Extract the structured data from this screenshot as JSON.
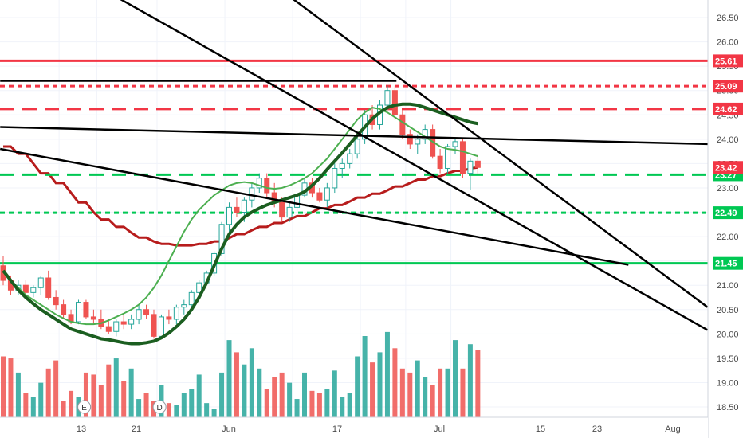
{
  "chart_data": {
    "type": "candlestick",
    "price_axis": {
      "range": [
        18.3,
        26.85
      ],
      "ticks": [
        "26.50",
        "26.00",
        "25.50",
        "25.00",
        "24.50",
        "24.00",
        "23.50",
        "23.00",
        "22.50",
        "22.00",
        "21.50",
        "21.00",
        "20.50",
        "20.00",
        "19.50",
        "19.00",
        "18.50"
      ]
    },
    "time_axis": {
      "ticks": [
        {
          "label": "13",
          "bar": 7
        },
        {
          "label": "Jun",
          "bar": 20
        },
        {
          "label": "21",
          "bar": 12
        },
        {
          "label": "17",
          "bar": 29
        },
        {
          "label": "Jul",
          "bar": 38
        },
        {
          "label": "15",
          "bar": 47
        },
        {
          "label": "23",
          "bar": 53
        },
        {
          "label": "Aug",
          "bar": 59
        }
      ]
    },
    "candles": [
      [
        21.4,
        21.6,
        21.0,
        21.1
      ],
      [
        21.1,
        21.2,
        20.8,
        20.9
      ],
      [
        20.9,
        21.1,
        20.8,
        21.0
      ],
      [
        21.0,
        21.1,
        20.8,
        20.85
      ],
      [
        20.85,
        21.0,
        20.75,
        20.95
      ],
      [
        20.95,
        21.2,
        20.8,
        21.15
      ],
      [
        21.15,
        21.3,
        20.7,
        20.75
      ],
      [
        20.75,
        20.9,
        20.5,
        20.6
      ],
      [
        20.6,
        20.7,
        20.3,
        20.4
      ],
      [
        20.4,
        20.5,
        20.2,
        20.25
      ],
      [
        20.25,
        20.7,
        20.2,
        20.65
      ],
      [
        20.65,
        20.7,
        20.3,
        20.35
      ],
      [
        20.35,
        20.5,
        20.2,
        20.3
      ],
      [
        20.3,
        20.5,
        20.1,
        20.15
      ],
      [
        20.15,
        20.3,
        20.0,
        20.05
      ],
      [
        20.05,
        20.3,
        19.95,
        20.25
      ],
      [
        20.25,
        20.4,
        20.1,
        20.2
      ],
      [
        20.2,
        20.4,
        20.1,
        20.3
      ],
      [
        20.3,
        20.6,
        20.2,
        20.5
      ],
      [
        20.5,
        20.6,
        20.3,
        20.4
      ],
      [
        20.4,
        20.5,
        19.9,
        19.95
      ],
      [
        19.95,
        20.4,
        19.9,
        20.35
      ],
      [
        20.35,
        20.5,
        20.2,
        20.3
      ],
      [
        20.3,
        20.6,
        20.2,
        20.55
      ],
      [
        20.55,
        20.7,
        20.4,
        20.6
      ],
      [
        20.6,
        20.9,
        20.5,
        20.85
      ],
      [
        20.85,
        21.1,
        20.8,
        21.05
      ],
      [
        21.05,
        21.3,
        21.0,
        21.25
      ],
      [
        21.25,
        21.7,
        21.2,
        21.65
      ],
      [
        21.65,
        22.3,
        21.6,
        22.25
      ],
      [
        22.25,
        22.7,
        22.1,
        22.6
      ],
      [
        22.6,
        22.8,
        22.4,
        22.5
      ],
      [
        22.5,
        22.8,
        22.3,
        22.75
      ],
      [
        22.75,
        23.1,
        22.6,
        23.0
      ],
      [
        23.0,
        23.3,
        22.9,
        23.2
      ],
      [
        23.2,
        23.3,
        22.8,
        22.9
      ],
      [
        22.9,
        23.1,
        22.6,
        22.7
      ],
      [
        22.7,
        22.8,
        22.3,
        22.4
      ],
      [
        22.4,
        22.7,
        22.3,
        22.6
      ],
      [
        22.6,
        22.9,
        22.5,
        22.85
      ],
      [
        22.85,
        23.2,
        22.8,
        23.1
      ],
      [
        23.1,
        23.2,
        22.8,
        22.9
      ],
      [
        22.9,
        23.0,
        22.7,
        22.75
      ],
      [
        22.75,
        23.1,
        22.6,
        23.0
      ],
      [
        23.0,
        23.5,
        22.9,
        23.4
      ],
      [
        23.4,
        23.6,
        23.2,
        23.5
      ],
      [
        23.5,
        23.8,
        23.4,
        23.7
      ],
      [
        23.7,
        24.1,
        23.6,
        24.0
      ],
      [
        24.0,
        24.6,
        23.9,
        24.5
      ],
      [
        24.5,
        24.7,
        24.2,
        24.3
      ],
      [
        24.3,
        24.8,
        24.2,
        24.7
      ],
      [
        24.7,
        25.1,
        24.6,
        25.0
      ],
      [
        25.0,
        25.1,
        24.4,
        24.5
      ],
      [
        24.5,
        24.6,
        24.0,
        24.1
      ],
      [
        24.1,
        24.2,
        23.8,
        23.9
      ],
      [
        23.9,
        24.1,
        23.7,
        24.0
      ],
      [
        24.0,
        24.3,
        23.9,
        24.2
      ],
      [
        24.2,
        24.3,
        23.6,
        23.65
      ],
      [
        23.65,
        23.8,
        23.3,
        23.4
      ],
      [
        23.4,
        23.9,
        23.3,
        23.85
      ],
      [
        23.85,
        24.0,
        23.7,
        23.95
      ],
      [
        23.95,
        24.0,
        23.2,
        23.3
      ],
      [
        23.3,
        23.6,
        22.95,
        23.55
      ],
      [
        23.55,
        23.7,
        23.3,
        23.42
      ]
    ],
    "volume": [
      30,
      29,
      22,
      12,
      10,
      17,
      24,
      28,
      8,
      13,
      10,
      22,
      21,
      16,
      26,
      29,
      18,
      24,
      9,
      12,
      8,
      16,
      7,
      6,
      12,
      14,
      21,
      7,
      4,
      22,
      38,
      32,
      26,
      34,
      24,
      14,
      20,
      22,
      17,
      9,
      22,
      13,
      12,
      14,
      23,
      10,
      12,
      30,
      40,
      27,
      32,
      42,
      34,
      24,
      22,
      28,
      20,
      16,
      24,
      24,
      38,
      24,
      36,
      33
    ],
    "sma_slow": [
      21.3,
      21.1,
      20.9,
      20.75,
      20.62,
      20.5,
      20.4,
      20.3,
      20.2,
      20.1,
      20.05,
      20.0,
      19.95,
      19.9,
      19.88,
      19.85,
      19.82,
      19.8,
      19.8,
      19.82,
      19.85,
      19.92,
      20.02,
      20.15,
      20.3,
      20.5,
      20.75,
      21.05,
      21.4,
      21.75,
      22.05,
      22.25,
      22.4,
      22.5,
      22.58,
      22.65,
      22.7,
      22.75,
      22.8,
      22.85,
      22.92,
      23.05,
      23.2,
      23.38,
      23.55,
      23.72,
      23.9,
      24.08,
      24.25,
      24.42,
      24.55,
      24.65,
      24.7,
      24.72,
      24.72,
      24.7,
      24.65,
      24.6,
      24.55,
      24.5,
      24.45,
      24.4,
      24.35,
      24.32
    ],
    "sma_fast": [
      21.3,
      21.1,
      20.95,
      20.8,
      20.7,
      20.6,
      20.5,
      20.4,
      20.32,
      20.25,
      20.22,
      20.2,
      20.2,
      20.22,
      20.28,
      20.35,
      20.42,
      20.5,
      20.6,
      20.75,
      20.95,
      21.2,
      21.5,
      21.8,
      22.1,
      22.35,
      22.55,
      22.7,
      22.85,
      22.95,
      23.05,
      23.1,
      23.12,
      23.1,
      23.05,
      23.0,
      22.98,
      23.0,
      23.05,
      23.12,
      23.2,
      23.3,
      23.45,
      23.6,
      23.8,
      24.0,
      24.2,
      24.4,
      24.55,
      24.65,
      24.62,
      24.55,
      24.45,
      24.35,
      24.25,
      24.15,
      24.05,
      23.95,
      23.85,
      23.8,
      23.78,
      23.75,
      23.7,
      23.65
    ],
    "ema_long": [
      23.85,
      23.7,
      23.5,
      23.3,
      23.1,
      22.9,
      22.7,
      22.5,
      22.35,
      22.2,
      22.08,
      21.98,
      21.9,
      21.85,
      21.82,
      21.82,
      21.85,
      21.9,
      21.97,
      22.05,
      22.13,
      22.2,
      22.28,
      22.35,
      22.42,
      22.5,
      22.58,
      22.65,
      22.72,
      22.8,
      22.88,
      22.95,
      23.03,
      23.1,
      23.17,
      23.24,
      23.3,
      23.35,
      23.4,
      23.42
    ],
    "levels": [
      {
        "value": 25.61,
        "label": "25.61",
        "color": "#f23645",
        "style": "solid"
      },
      {
        "value": 25.09,
        "label": "25.09",
        "color": "#f23645",
        "style": "dotted"
      },
      {
        "value": 24.62,
        "label": "24.62",
        "color": "#f23645",
        "style": "dashed"
      },
      {
        "value": 23.27,
        "label": "23.27",
        "color": "#00c853",
        "style": "dashed"
      },
      {
        "value": 22.49,
        "label": "22.49",
        "color": "#00c853",
        "style": "dotted"
      },
      {
        "value": 21.45,
        "label": "21.45",
        "color": "#00c853",
        "style": "solid"
      }
    ],
    "last_price": {
      "value": 23.42,
      "label": "23.42",
      "color": "#f23645"
    },
    "events": [
      {
        "label": "E",
        "bar": 8
      },
      {
        "label": "D",
        "bar": 18
      }
    ],
    "colors": {
      "up": "#26a69a",
      "down": "#ef5350",
      "sma_fast": "#4caf50",
      "sma_slow": "#1b5e20",
      "ema_long": "#b71c1c",
      "trend": "#000000"
    }
  }
}
